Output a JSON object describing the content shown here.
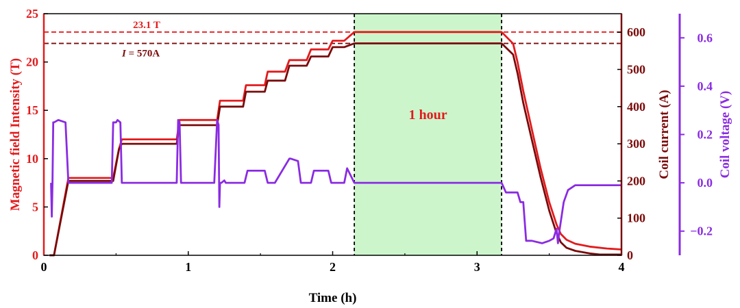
{
  "chart_data": {
    "type": "line",
    "xlabel": "Time (h)",
    "xlim": [
      0,
      4
    ],
    "xticks": [
      "0",
      "1",
      "2",
      "3",
      "4"
    ],
    "axes": {
      "left": {
        "label": "Magnetic field Intensity (T)",
        "lim": [
          0,
          25
        ],
        "ticks": [
          "0",
          "5",
          "10",
          "15",
          "20",
          "25"
        ],
        "color": "#e31a1c"
      },
      "right1": {
        "label": "Coil current (A)",
        "lim": [
          0,
          650
        ],
        "ticks": [
          "0",
          "100",
          "200",
          "300",
          "400",
          "500",
          "600"
        ],
        "color": "#7a0a0a"
      },
      "right2": {
        "label": "Coil voltage (V)",
        "lim": [
          -0.3,
          0.7
        ],
        "ticks": [
          "−0.2",
          "0.0",
          "0.2",
          "0.4",
          "0.6"
        ],
        "color": "#8a2be2"
      }
    },
    "series": [
      {
        "axis": "left",
        "color": "#e31a1c",
        "x": [
          0.04,
          0.07,
          0.17,
          0.48,
          0.52,
          0.54,
          0.92,
          0.94,
          1.2,
          1.22,
          1.38,
          1.4,
          1.53,
          1.55,
          1.67,
          1.7,
          1.82,
          1.85,
          1.97,
          2.0,
          2.08,
          2.15,
          2.2,
          3.15,
          3.17,
          3.25,
          3.28,
          3.32,
          3.38,
          3.44,
          3.5,
          3.55,
          3.58,
          3.62,
          3.68,
          3.78,
          3.9,
          4.0
        ],
        "y": [
          0,
          0,
          8.0,
          8.0,
          11.0,
          12.0,
          12.0,
          14.0,
          14.0,
          16.0,
          16.0,
          17.6,
          17.6,
          19.0,
          19.0,
          20.2,
          20.2,
          21.3,
          21.3,
          22.2,
          22.2,
          23.1,
          23.1,
          23.1,
          23.1,
          21.9,
          20.0,
          17.0,
          13.0,
          9.0,
          5.5,
          3.2,
          2.2,
          1.6,
          1.2,
          0.9,
          0.7,
          0.6
        ]
      },
      {
        "axis": "right1",
        "color": "#7a0a0a",
        "x": [
          0.04,
          0.07,
          0.17,
          0.48,
          0.52,
          0.54,
          0.92,
          0.94,
          1.2,
          1.22,
          1.38,
          1.4,
          1.53,
          1.55,
          1.67,
          1.7,
          1.82,
          1.85,
          1.97,
          2.0,
          2.08,
          2.15,
          2.2,
          3.15,
          3.17,
          3.25,
          3.28,
          3.32,
          3.38,
          3.44,
          3.5,
          3.55,
          3.58,
          3.62,
          3.68,
          3.78,
          3.85,
          4.0
        ],
        "y": [
          0,
          0,
          200,
          200,
          285,
          300,
          300,
          350,
          350,
          400,
          400,
          440,
          440,
          470,
          470,
          510,
          510,
          535,
          535,
          560,
          560,
          570,
          570,
          570,
          570,
          540,
          490,
          410,
          310,
          210,
          120,
          60,
          35,
          20,
          12,
          5,
          2,
          2
        ]
      },
      {
        "axis": "right2",
        "color": "#8a2be2",
        "x": [
          0.05,
          0.055,
          0.06,
          0.065,
          0.07,
          0.1,
          0.15,
          0.17,
          0.175,
          0.47,
          0.48,
          0.5,
          0.51,
          0.53,
          0.54,
          0.92,
          0.93,
          0.94,
          0.95,
          0.96,
          1.18,
          1.2,
          1.21,
          1.215,
          1.22,
          1.23,
          1.25,
          1.26,
          1.27,
          1.39,
          1.41,
          1.53,
          1.55,
          1.58,
          1.6,
          1.7,
          1.71,
          1.76,
          1.78,
          1.85,
          1.87,
          1.97,
          1.99,
          2.08,
          2.1,
          2.15,
          2.2,
          3.15,
          3.17,
          3.2,
          3.28,
          3.3,
          3.32,
          3.34,
          3.38,
          3.45,
          3.5,
          3.53,
          3.55,
          3.56,
          3.57,
          3.6,
          3.63,
          3.68,
          3.75,
          3.85,
          4.0
        ],
        "y": [
          0.0,
          -0.14,
          0.0,
          0.25,
          0.25,
          0.26,
          0.25,
          0.0,
          0.0,
          0.0,
          0.25,
          0.25,
          0.26,
          0.25,
          0.0,
          0.0,
          0.26,
          0.25,
          0.0,
          0.0,
          0.0,
          0.26,
          0.24,
          -0.1,
          0.0,
          0.0,
          0.01,
          0.0,
          0.0,
          0.0,
          0.05,
          0.05,
          0.0,
          0.0,
          0.0,
          0.1,
          0.1,
          0.09,
          0.0,
          0.0,
          0.05,
          0.05,
          0.0,
          0.0,
          0.06,
          0.0,
          0.0,
          0.0,
          0.0,
          -0.04,
          -0.04,
          -0.08,
          -0.08,
          -0.24,
          -0.24,
          -0.25,
          -0.24,
          -0.23,
          -0.19,
          -0.25,
          -0.2,
          -0.08,
          -0.03,
          -0.01,
          -0.01,
          -0.01,
          -0.01
        ]
      }
    ],
    "reference_lines": [
      {
        "axis": "left",
        "value": 23.1,
        "color": "#e31a1c",
        "label": "23.1 T"
      },
      {
        "axis": "right1",
        "value": 570,
        "color": "#7a0a0a",
        "label_var": "I",
        "label_rest": " = 570A"
      }
    ],
    "highlight": {
      "x_start": 2.15,
      "x_end": 3.17,
      "color": "#ccf5cc",
      "label": "1 hour",
      "label_color": "#e31a1c"
    }
  }
}
